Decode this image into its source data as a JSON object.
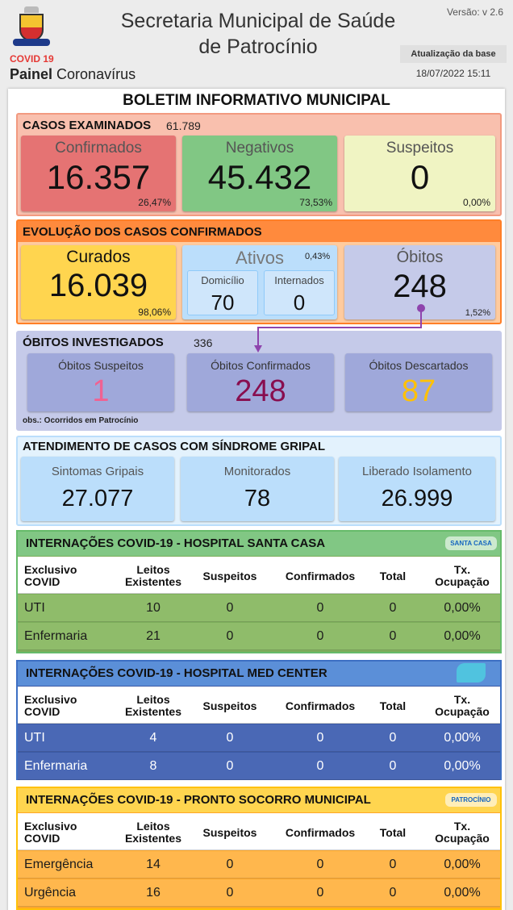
{
  "header": {
    "title_line1": "Secretaria Municipal de Saúde",
    "title_line2": "de Patrocínio",
    "covid": "COVID 19",
    "panel": "Painel",
    "panel_sub": "Coronavírus",
    "version": "Versão: v 2.6",
    "update_label": "Atualização da base",
    "update_date": "18/07/2022 15:11"
  },
  "bulletin_title": "BOLETIM INFORMATIVO MUNICIPAL",
  "cases": {
    "title": "CASOS EXAMINADOS",
    "total": "61.789",
    "cards": [
      {
        "label": "Confirmados",
        "value": "16.357",
        "percent": "26,47%"
      },
      {
        "label": "Negativos",
        "value": "45.432",
        "percent": "73,53%"
      },
      {
        "label": "Suspeitos",
        "value": "0",
        "percent": "0,00%"
      }
    ]
  },
  "evolution": {
    "title": "EVOLUÇÃO DOS CASOS CONFIRMADOS",
    "recovered": {
      "label": "Curados",
      "value": "16.039",
      "percent": "98,06%"
    },
    "active": {
      "label": "Ativos",
      "percent": "0,43%",
      "home": {
        "label": "Domicílio",
        "value": "70"
      },
      "hospitalized": {
        "label": "Internados",
        "value": "0"
      }
    },
    "deaths": {
      "label": "Óbitos",
      "value": "248",
      "percent": "1,52%"
    }
  },
  "deaths_investigated": {
    "title": "ÓBITOS INVESTIGADOS",
    "total": "336",
    "cards": [
      {
        "label": "Óbitos Suspeitos",
        "value": "1"
      },
      {
        "label": "Óbitos Confirmados",
        "value": "248"
      },
      {
        "label": "Óbitos Descartados",
        "value": "87"
      }
    ],
    "note": "obs.: Ocorridos em Patrocínio"
  },
  "flu_care": {
    "title": "ATENDIMENTO DE CASOS COM SÍNDROME GRIPAL",
    "cards": [
      {
        "label": "Sintomas Gripais",
        "value": "27.077"
      },
      {
        "label": "Monitorados",
        "value": "78"
      },
      {
        "label": "Liberado Isolamento",
        "value": "26.999"
      }
    ]
  },
  "hospitals": [
    {
      "title": "INTERNAÇÕES COVID-19 - HOSPITAL SANTA CASA",
      "logo": "SANTA CASA",
      "columns": [
        "Exclusivo COVID",
        "Leitos Existentes",
        "Suspeitos",
        "Confirmados",
        "Total",
        "Tx. Ocupação"
      ],
      "rows": [
        [
          "UTI",
          "10",
          "0",
          "0",
          "0",
          "0,00%"
        ],
        [
          "Enfermaria",
          "21",
          "0",
          "0",
          "0",
          "0,00%"
        ]
      ]
    },
    {
      "title": "INTERNAÇÕES COVID-19 - HOSPITAL MED CENTER",
      "columns": [
        "Exclusivo COVID",
        "Leitos Existentes",
        "Suspeitos",
        "Confirmados",
        "Total",
        "Tx. Ocupação"
      ],
      "rows": [
        [
          "UTI",
          "4",
          "0",
          "0",
          "0",
          "0,00%"
        ],
        [
          "Enfermaria",
          "8",
          "0",
          "0",
          "0",
          "0,00%"
        ]
      ]
    },
    {
      "title": "INTERNAÇÕES COVID-19 - PRONTO SOCORRO MUNICIPAL",
      "logo": "PATROCÍNIO",
      "columns": [
        "Exclusivo COVID",
        "Leitos Existentes",
        "Suspeitos",
        "Confirmados",
        "Total",
        "Tx. Ocupação"
      ],
      "rows": [
        [
          "Emergência",
          "14",
          "0",
          "0",
          "0",
          "0,00%"
        ],
        [
          "Urgência",
          "16",
          "0",
          "0",
          "0",
          "0,00%"
        ]
      ]
    }
  ]
}
